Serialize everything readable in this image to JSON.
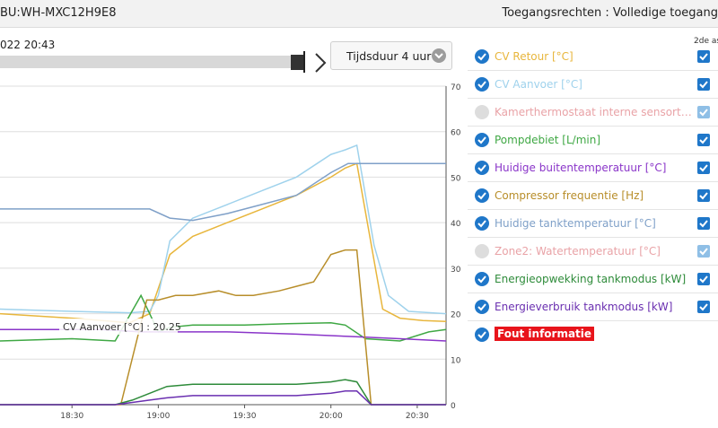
{
  "header": {
    "device_id": "BU:WH-MXC12H9E8",
    "access_rights": "Toegangsrechten : Volledige toegang"
  },
  "time_control": {
    "date_label": "022 20:43",
    "duration_label": "Tijdsduur 4 uur",
    "chevron_icon": "chevron-right-icon",
    "dropdown_icon": "chevron-down-icon"
  },
  "legend": {
    "column_header": "2de as",
    "items": [
      {
        "label": "CV Retour [°C]",
        "color": "#e8b63c",
        "enabled": true
      },
      {
        "label": "CV Aanvoer [°C]",
        "color": "#9fd2ec",
        "enabled": true
      },
      {
        "label": "Kamerthermostaat interne sensortemperatuur [°C]",
        "color": "#e9a3a7",
        "enabled": false
      },
      {
        "label": "Pompdebiet [L/min]",
        "color": "#3fa844",
        "enabled": true
      },
      {
        "label": "Huidige buitentemperatuur [°C]",
        "color": "#8a35c9",
        "enabled": true
      },
      {
        "label": "Compressor frequentie [Hz]",
        "color": "#b88e2a",
        "enabled": true
      },
      {
        "label": "Huidige tanktemperatuur [°C]",
        "color": "#7fa0c8",
        "enabled": true
      },
      {
        "label": "Zone2: Watertemperatuur [°C]",
        "color": "#e9a3a7",
        "enabled": false
      },
      {
        "label": "Energieopwekking tankmodus [kW]",
        "color": "#2e8b3a",
        "enabled": true
      },
      {
        "label": "Energieverbruik tankmodus [kW]",
        "color": "#6a2fb0",
        "enabled": true
      }
    ],
    "error_label": "Fout informatie"
  },
  "chart_data": {
    "type": "line",
    "x_ticks": [
      "18:30",
      "19:00",
      "19:30",
      "20:00",
      "20:30"
    ],
    "y_ticks": [
      "0",
      "10",
      "20",
      "30",
      "40",
      "50",
      "60",
      "70"
    ],
    "ylim": [
      0,
      70
    ],
    "tooltip": "CV Aanvoer [°C] : 20.25",
    "series": [
      {
        "name": "CV Retour [°C]",
        "color": "#e8b63c",
        "x": [
          18.083,
          18.5,
          18.833,
          18.95,
          19.067,
          19.2,
          19.4,
          19.6,
          19.8,
          20.0,
          20.083,
          20.15,
          20.3,
          20.4,
          20.533,
          20.667
        ],
        "y": [
          20,
          19,
          18,
          20,
          33,
          37,
          40,
          43,
          46,
          50,
          52,
          53,
          21,
          19,
          18.5,
          18.3
        ]
      },
      {
        "name": "CV Aanvoer [°C]",
        "color": "#9fd2ec",
        "x": [
          18.083,
          18.5,
          18.833,
          18.95,
          19.0,
          19.067,
          19.2,
          19.4,
          19.6,
          19.8,
          20.0,
          20.083,
          20.15,
          20.25,
          20.333,
          20.45,
          20.667
        ],
        "y": [
          21,
          20.5,
          20.2,
          20.5,
          24,
          36,
          41,
          44,
          47,
          50,
          55,
          56,
          57,
          35,
          24,
          20.5,
          20
        ]
      },
      {
        "name": "Pompdebiet [L/min]",
        "color": "#3fa844",
        "x": [
          18.083,
          18.5,
          18.75,
          18.9,
          19.0,
          19.067,
          19.2,
          19.5,
          19.75,
          20.0,
          20.083,
          20.2,
          20.4,
          20.567,
          20.667
        ],
        "y": [
          14,
          14.5,
          14,
          24,
          16,
          17,
          17.5,
          17.5,
          17.8,
          18,
          17.5,
          14.5,
          14,
          16,
          16.5
        ]
      },
      {
        "name": "Huidige buitentemperatuur [°C]",
        "color": "#8a35c9",
        "x": [
          18.083,
          18.667,
          18.9,
          19.4,
          19.8,
          20.1,
          20.4,
          20.667
        ],
        "y": [
          16.5,
          16.5,
          16,
          16,
          15.5,
          15,
          14.5,
          14
        ]
      },
      {
        "name": "Compressor frequentie [Hz]",
        "color": "#b88e2a",
        "x": [
          18.083,
          18.783,
          18.933,
          19.0,
          19.1,
          19.2,
          19.35,
          19.45,
          19.55,
          19.7,
          19.8,
          19.9,
          20.0,
          20.083,
          20.15,
          20.233,
          20.667
        ],
        "y": [
          0,
          0,
          23,
          23,
          24,
          24,
          25,
          24,
          24,
          25,
          26,
          27,
          33,
          34,
          34,
          0,
          0
        ]
      },
      {
        "name": "Huidige tanktemperatuur [°C]",
        "color": "#7fa0c8",
        "x": [
          18.083,
          18.75,
          18.95,
          19.067,
          19.2,
          19.4,
          19.6,
          19.8,
          20.0,
          20.1,
          20.667
        ],
        "y": [
          43,
          43,
          43,
          41,
          40.5,
          42,
          44,
          46,
          51,
          53,
          53
        ]
      },
      {
        "name": "Energieopwekking tankmodus [kW]",
        "color": "#2e8b3a",
        "x": [
          18.083,
          18.75,
          18.85,
          18.95,
          19.05,
          19.2,
          19.4,
          19.6,
          19.8,
          20.0,
          20.083,
          20.15,
          20.233,
          20.667
        ],
        "y": [
          0,
          0,
          1,
          2.5,
          4,
          4.5,
          4.5,
          4.5,
          4.5,
          5,
          5.5,
          5,
          0,
          0
        ]
      },
      {
        "name": "Energieverbruik tankmodus [kW]",
        "color": "#6a2fb0",
        "x": [
          18.083,
          18.75,
          18.85,
          18.95,
          19.05,
          19.2,
          19.4,
          19.6,
          19.8,
          20.0,
          20.083,
          20.15,
          20.233,
          20.667
        ],
        "y": [
          0,
          0,
          0.5,
          1,
          1.5,
          2,
          2,
          2,
          2,
          2.5,
          3,
          3,
          0,
          0
        ]
      }
    ]
  }
}
